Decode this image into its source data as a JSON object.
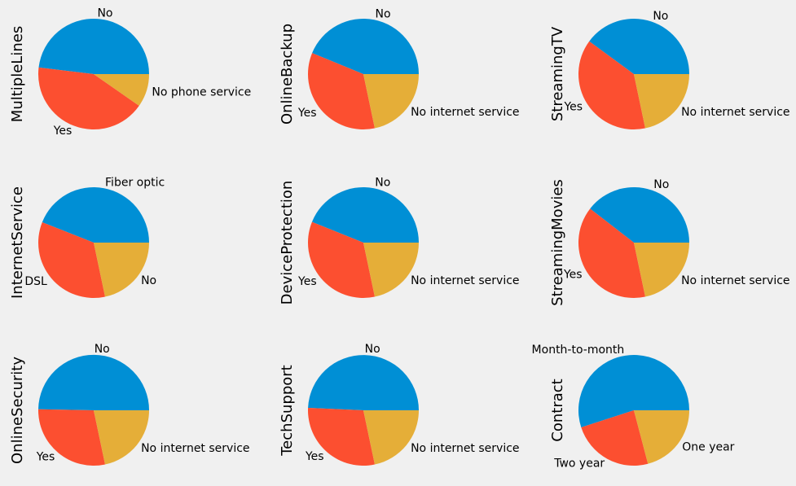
{
  "colors": [
    "#008fd5",
    "#fc4f30",
    "#e5ae38"
  ],
  "chart_data": [
    {
      "type": "pie",
      "ylabel": "MultipleLines",
      "labels": [
        "No",
        "Yes",
        "No phone service"
      ],
      "values": [
        48.1,
        42.2,
        9.7
      ]
    },
    {
      "type": "pie",
      "ylabel": "OnlineBackup",
      "labels": [
        "No",
        "Yes",
        "No internet service"
      ],
      "values": [
        43.8,
        34.5,
        21.7
      ]
    },
    {
      "type": "pie",
      "ylabel": "StreamingTV",
      "labels": [
        "No",
        "Yes",
        "No internet service"
      ],
      "values": [
        39.9,
        38.4,
        21.7
      ]
    },
    {
      "type": "pie",
      "ylabel": "InternetService",
      "labels": [
        "Fiber optic",
        "DSL",
        "No"
      ],
      "values": [
        44.0,
        34.3,
        21.7
      ]
    },
    {
      "type": "pie",
      "ylabel": "DeviceProtection",
      "labels": [
        "No",
        "Yes",
        "No internet service"
      ],
      "values": [
        43.9,
        34.4,
        21.7
      ]
    },
    {
      "type": "pie",
      "ylabel": "StreamingMovies",
      "labels": [
        "No",
        "Yes",
        "No internet service"
      ],
      "values": [
        39.5,
        38.8,
        21.7
      ]
    },
    {
      "type": "pie",
      "ylabel": "OnlineSecurity",
      "labels": [
        "No",
        "Yes",
        "No internet service"
      ],
      "values": [
        49.7,
        28.6,
        21.7
      ]
    },
    {
      "type": "pie",
      "ylabel": "TechSupport",
      "labels": [
        "No",
        "Yes",
        "No internet service"
      ],
      "values": [
        49.3,
        29.0,
        21.7
      ]
    },
    {
      "type": "pie",
      "ylabel": "Contract",
      "labels": [
        "Month-to-month",
        "Two year",
        "One year"
      ],
      "values": [
        55.0,
        24.1,
        20.9
      ]
    }
  ]
}
